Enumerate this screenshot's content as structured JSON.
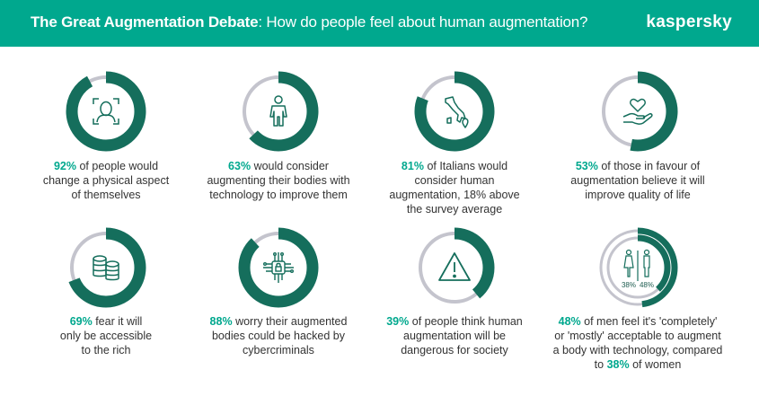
{
  "header": {
    "title_bold": "The Great Augmentation Debate",
    "title_rest": ": How do people feel about human augmentation?",
    "brand": "kaspersky",
    "bg_color": "#00A88E"
  },
  "colors": {
    "ring_fill": "#156E5C",
    "ring_track": "#C4C4CD",
    "accent": "#00A88E"
  },
  "stats": [
    {
      "pct": "92%",
      "value": 92,
      "icon": "face-scan-icon",
      "lines": [
        "of people would",
        "change a physical aspect",
        "of themselves"
      ]
    },
    {
      "pct": "63%",
      "value": 63,
      "icon": "human-body-icon",
      "lines": [
        "would consider",
        "augmenting their bodies with",
        "technology to improve them"
      ]
    },
    {
      "pct": "81%",
      "value": 81,
      "icon": "italy-map-pin-icon",
      "lines": [
        "of Italians would",
        "consider human",
        "augmentation, 18% above",
        "the survey average"
      ]
    },
    {
      "pct": "53%",
      "value": 53,
      "icon": "heart-hand-icon",
      "lines": [
        "of those in favour of",
        "augmentation believe it will",
        "improve quality of life"
      ]
    },
    {
      "pct": "69%",
      "value": 69,
      "icon": "coin-stack-icon",
      "lines": [
        "fear it will",
        "only be accessible",
        "to the rich"
      ]
    },
    {
      "pct": "88%",
      "value": 88,
      "icon": "circuit-lock-icon",
      "lines": [
        "worry their augmented",
        "bodies could be hacked by",
        "cybercriminals"
      ]
    },
    {
      "pct": "39%",
      "value": 39,
      "icon": "warning-icon",
      "lines": [
        "of people think human",
        "augmentation will be",
        "dangerous for society"
      ]
    },
    {
      "pct": "48%",
      "value": 48,
      "icon": "gender-icon",
      "lines": [
        "of men feel it's 'completely'",
        "or 'mostly' acceptable to augment",
        "a body with technology, compared",
        "to"
      ],
      "pct2": "38%",
      "tail": "of women",
      "icon_labels": [
        "38%",
        "48%"
      ],
      "value_outer": 48,
      "value_inner": 38
    }
  ]
}
